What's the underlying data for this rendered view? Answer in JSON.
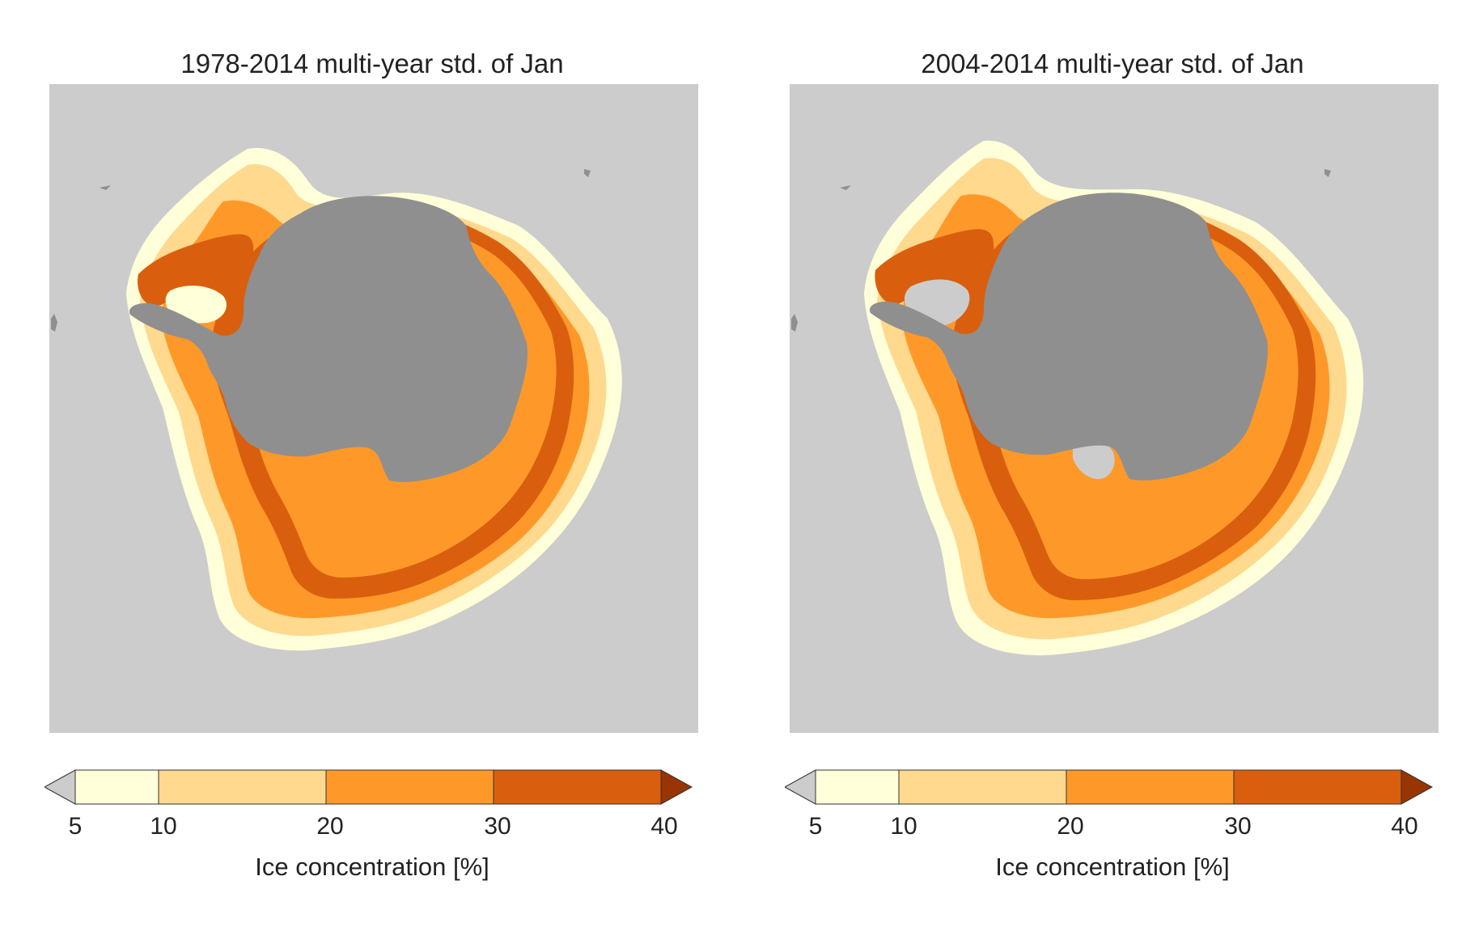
{
  "panels": [
    {
      "title": "1978-2014 multi-year std. of Jan"
    },
    {
      "title": "2004-2014 multi-year std. of Jan"
    }
  ],
  "colorbar": {
    "label": "Ice concentration [%]",
    "ticks": [
      "5",
      "10",
      "20",
      "30",
      "40"
    ],
    "bins": [
      {
        "range": "<5",
        "color": "#cccccc"
      },
      {
        "range": "5-10",
        "color": "#ffffd9"
      },
      {
        "range": "10-20",
        "color": "#fed98e"
      },
      {
        "range": "20-30",
        "color": "#fe9929"
      },
      {
        "range": "30-40",
        "color": "#d95f0e"
      },
      {
        "range": ">40",
        "color": "#993404"
      }
    ]
  },
  "map": {
    "background_color": "#cccccc",
    "land_color": "#8f8f8f"
  }
}
